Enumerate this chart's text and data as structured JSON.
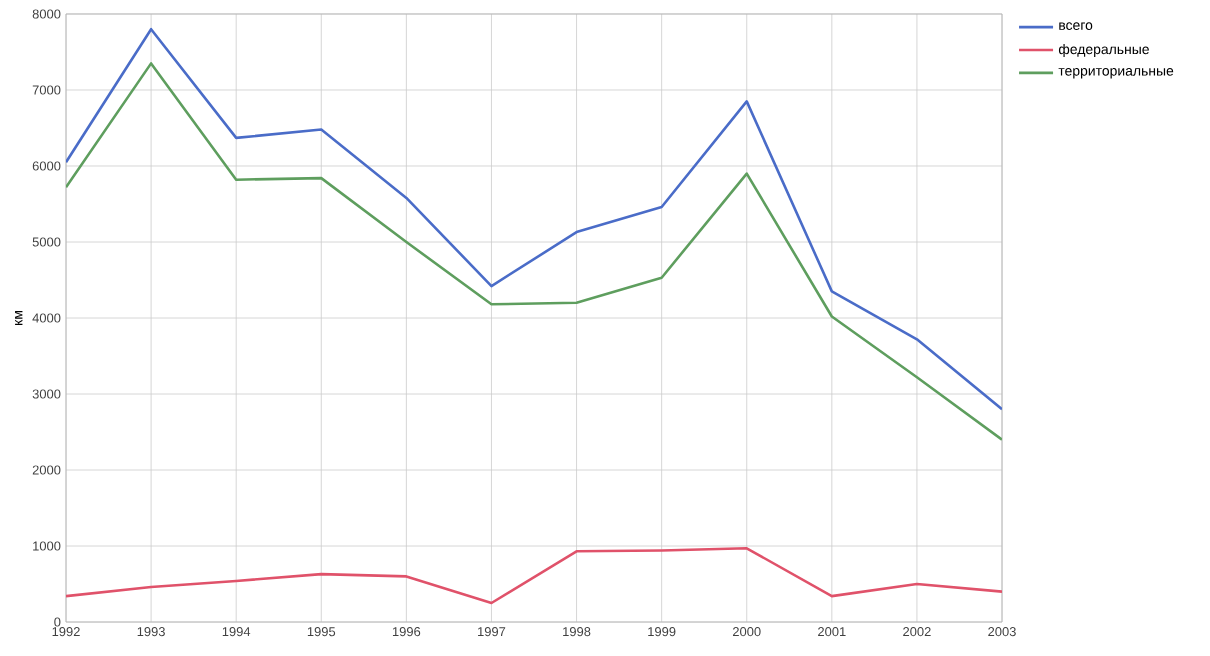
{
  "chart_data": {
    "type": "line",
    "ylabel": "км",
    "categories": [
      "1992",
      "1993",
      "1994",
      "1995",
      "1996",
      "1997",
      "1998",
      "1999",
      "2000",
      "2001",
      "2002",
      "2003"
    ],
    "series": [
      {
        "name": "всего",
        "color": "#4a6cc8",
        "values": [
          6050,
          7800,
          6370,
          6480,
          5580,
          4420,
          5130,
          5460,
          6850,
          4350,
          3720,
          2800
        ]
      },
      {
        "name": "федеральные",
        "color": "#e0526a",
        "values": [
          340,
          460,
          540,
          630,
          600,
          250,
          930,
          940,
          970,
          340,
          500,
          400
        ]
      },
      {
        "name": "территориальные",
        "color": "#5e9e5e",
        "values": [
          5720,
          7350,
          5820,
          5840,
          5000,
          4180,
          4200,
          4530,
          5900,
          4020,
          3220,
          2400
        ]
      }
    ],
    "ylim": [
      0,
      8000
    ],
    "yticks": [
      0,
      1000,
      2000,
      3000,
      4000,
      5000,
      6000,
      7000,
      8000
    ],
    "grid": true,
    "legend": "top right",
    "marker": "none",
    "line_style": "solid"
  }
}
